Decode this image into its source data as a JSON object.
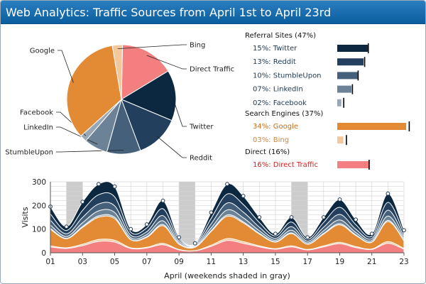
{
  "window": {
    "title": "Web Analytics: Traffic Sources from April 1st to April 23rd"
  },
  "colors": {
    "twitter": "#0c2740",
    "reddit": "#22405e",
    "stumbleupon": "#45607b",
    "linkedin": "#6c8296",
    "facebook": "#98a7b6",
    "google": "#e38a34",
    "bing": "#f2c79b",
    "direct": "#f47f80",
    "weekend": "#cccccc"
  },
  "chart_data": [
    {
      "type": "pie",
      "title": "",
      "slices": [
        {
          "label": "Twitter",
          "value": 15
        },
        {
          "label": "Reddit",
          "value": 13
        },
        {
          "label": "StumbleUpon",
          "value": 10
        },
        {
          "label": "LinkedIn",
          "value": 7
        },
        {
          "label": "Facebook",
          "value": 2
        },
        {
          "label": "Google",
          "value": 34
        },
        {
          "label": "Bing",
          "value": 3
        },
        {
          "label": "Direct Traffic",
          "value": 16
        }
      ]
    },
    {
      "type": "bar",
      "subtype": "bullet",
      "groups": [
        {
          "label": "Referral Sites (47%)",
          "items": [
            {
              "label": "15%: Twitter",
              "value": 15,
              "marker": 15.3,
              "key": "twitter"
            },
            {
              "label": "13%: Reddit",
              "value": 13,
              "marker": 13.5,
              "key": "reddit"
            },
            {
              "label": "10%: StumbleUpon",
              "value": 10,
              "marker": 10.3,
              "key": "stumbleupon"
            },
            {
              "label": "07%: LinkedIn",
              "value": 7,
              "marker": 7.5,
              "key": "linkedin"
            },
            {
              "label": "02%: Facebook",
              "value": 2,
              "marker": 3.2,
              "key": "facebook"
            }
          ]
        },
        {
          "label": "Search Engines (37%)",
          "items": [
            {
              "label": "34%: Google",
              "value": 34,
              "marker": 35.5,
              "key": "google"
            },
            {
              "label": "03%: Bing",
              "value": 3,
              "marker": 4.5,
              "key": "bing"
            }
          ]
        },
        {
          "label": "Direct (16%)",
          "items": [
            {
              "label": "16%: Direct Traffic",
              "value": 16,
              "marker": 15.7,
              "key": "direct"
            }
          ]
        }
      ],
      "xlim": [
        0,
        35
      ]
    },
    {
      "type": "area",
      "stacked": true,
      "xlabel": "April (weekends shaded in gray)",
      "ylabel": "Visits",
      "x_ticks": [
        "01",
        "03",
        "05",
        "07",
        "09",
        "11",
        "13",
        "15",
        "17",
        "19",
        "21",
        "23"
      ],
      "y_ticks": [
        "0",
        "100",
        "200",
        "300"
      ],
      "ylim": [
        0,
        300
      ],
      "xlim": [
        1,
        23
      ],
      "grid": true,
      "weekends": [
        [
          2,
          3
        ],
        [
          9,
          10
        ],
        [
          16,
          17
        ]
      ],
      "days": [
        1,
        2,
        3,
        4,
        5,
        6,
        7,
        8,
        9,
        10,
        11,
        12,
        13,
        14,
        15,
        16,
        17,
        18,
        19,
        20,
        21,
        22,
        23
      ],
      "totals": [
        195,
        110,
        215,
        290,
        280,
        100,
        120,
        220,
        65,
        40,
        170,
        290,
        240,
        150,
        80,
        150,
        65,
        150,
        225,
        140,
        80,
        250,
        95
      ],
      "series": [
        {
          "name": "Direct Traffic",
          "key": "direct",
          "values": [
            25,
            18,
            30,
            48,
            45,
            18,
            20,
            34,
            12,
            8,
            27,
            52,
            40,
            25,
            15,
            25,
            12,
            25,
            38,
            22,
            14,
            40,
            15
          ]
        },
        {
          "name": "Bing",
          "key": "bing",
          "values": [
            4,
            3,
            6,
            8,
            8,
            3,
            3,
            6,
            2,
            1,
            5,
            8,
            7,
            4,
            2,
            4,
            2,
            4,
            6,
            4,
            2,
            7,
            3
          ]
        },
        {
          "name": "Google",
          "key": "google",
          "values": [
            70,
            38,
            71,
            94,
            91,
            34,
            42,
            74,
            22,
            14,
            58,
            94,
            79,
            50,
            28,
            52,
            22,
            50,
            74,
            47,
            28,
            85,
            32
          ]
        },
        {
          "name": "Facebook",
          "key": "facebook",
          "values": [
            4,
            2,
            4,
            6,
            6,
            2,
            3,
            5,
            1,
            1,
            3,
            6,
            5,
            3,
            2,
            3,
            1,
            3,
            5,
            3,
            2,
            5,
            2
          ]
        },
        {
          "name": "LinkedIn",
          "key": "linkedin",
          "values": [
            14,
            8,
            16,
            21,
            20,
            7,
            9,
            16,
            5,
            3,
            12,
            21,
            17,
            11,
            6,
            11,
            5,
            11,
            16,
            10,
            6,
            18,
            7
          ]
        },
        {
          "name": "StumbleUpon",
          "key": "stumbleupon",
          "values": [
            20,
            11,
            22,
            29,
            28,
            10,
            12,
            22,
            7,
            4,
            17,
            29,
            24,
            15,
            8,
            15,
            7,
            15,
            23,
            14,
            8,
            25,
            10
          ]
        },
        {
          "name": "Reddit",
          "key": "reddit",
          "values": [
            27,
            14,
            30,
            39,
            38,
            13,
            16,
            29,
            8,
            4,
            23,
            38,
            32,
            20,
            10,
            20,
            8,
            20,
            30,
            19,
            10,
            33,
            12
          ]
        },
        {
          "name": "Twitter",
          "key": "twitter",
          "values": [
            31,
            16,
            36,
            45,
            44,
            13,
            15,
            34,
            8,
            4,
            25,
            42,
            36,
            22,
            9,
            20,
            8,
            22,
            33,
            21,
            10,
            37,
            14
          ]
        }
      ]
    }
  ]
}
